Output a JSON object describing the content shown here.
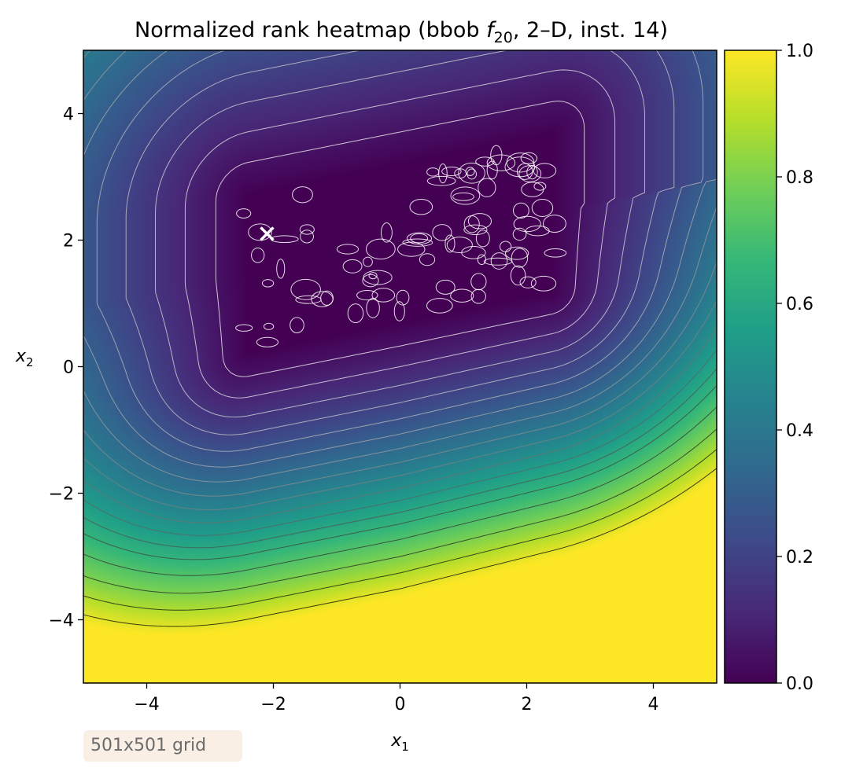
{
  "chart_data": {
    "type": "heatmap",
    "title": "Normalized rank heatmap (bbob f20, 2–D, inst. 14)",
    "title_parts": {
      "prefix": "Normalized rank heatmap (bbob ",
      "func": "f",
      "func_sub": "20",
      "suffix": ", 2–D, inst. 14)"
    },
    "xlabel": "x1",
    "xlabel_parts": {
      "base": "x",
      "sub": "1"
    },
    "ylabel": "x2",
    "ylabel_parts": {
      "base": "x",
      "sub": "2"
    },
    "xlim": [
      -5,
      5
    ],
    "ylim": [
      -5,
      5
    ],
    "x_ticks": [
      -4,
      -2,
      0,
      2,
      4
    ],
    "x_tick_labels": [
      "−4",
      "−2",
      "0",
      "2",
      "4"
    ],
    "y_ticks": [
      -4,
      -2,
      0,
      2,
      4
    ],
    "y_tick_labels": [
      "−4",
      "−2",
      "0",
      "2",
      "4"
    ],
    "colorbar": {
      "colormap": "viridis",
      "range": [
        0.0,
        1.0
      ],
      "ticks": [
        0.0,
        0.2,
        0.4,
        0.6,
        0.8,
        1.0
      ],
      "tick_labels": [
        "0.0",
        "0.2",
        "0.4",
        "0.6",
        "0.8",
        "1.0"
      ],
      "colors": [
        "#440154",
        "#482878",
        "#3e4989",
        "#31688e",
        "#26828e",
        "#1f9e89",
        "#35b779",
        "#6ece58",
        "#b5de2b",
        "#fde725"
      ]
    },
    "minimum_region": {
      "x_range": [
        -2.6,
        2.6
      ],
      "y_range": [
        0.6,
        3.3
      ],
      "orientation": "tilted, rising to the right",
      "value": 0.0
    },
    "contour_lines": "yes",
    "marker": {
      "symbol": "x",
      "x": -2.1,
      "y": 2.1,
      "color": "#ffffff"
    },
    "grid": false,
    "legend": "none",
    "annotation": "501x501 grid"
  }
}
